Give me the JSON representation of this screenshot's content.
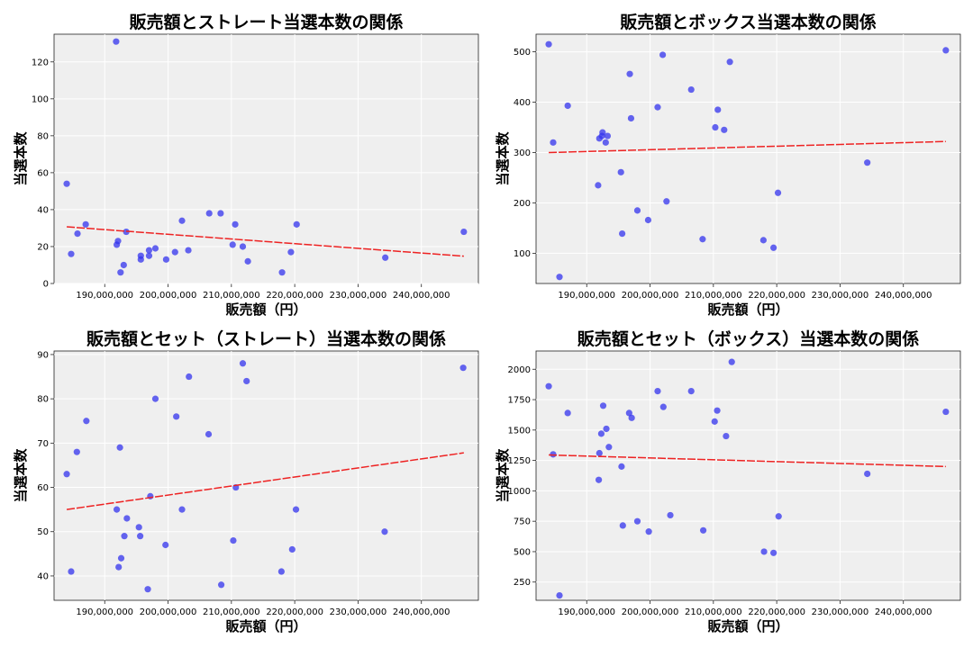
{
  "colors": {
    "plot_bg": "#efefef",
    "grid": "#ffffff",
    "point": "#3333ee",
    "trend": "#ee2222"
  },
  "charts": [
    {
      "chart_data": {
        "type": "scatter",
        "title": "販売額とストレート当選本数の関係",
        "xlabel": "販売額（円）",
        "ylabel": "当選本数",
        "xlim": [
          182000000,
          249000000
        ],
        "ylim": [
          0,
          135
        ],
        "xticks": [
          190000000,
          200000000,
          210000000,
          220000000,
          230000000,
          240000000
        ],
        "xtick_labels": [
          "190,000,000",
          "200,000,000",
          "210,000,000",
          "220,000,000",
          "230,000,000",
          "240,000,000"
        ],
        "yticks": [
          0,
          20,
          40,
          60,
          80,
          100,
          120
        ],
        "ytick_labels": [
          "0",
          "20",
          "40",
          "60",
          "80",
          "100",
          "120"
        ],
        "grid": true,
        "points": [
          [
            184000000,
            54
          ],
          [
            184700000,
            16
          ],
          [
            185700000,
            27
          ],
          [
            187000000,
            32
          ],
          [
            191800000,
            131
          ],
          [
            191900000,
            21
          ],
          [
            192100000,
            23
          ],
          [
            192500000,
            6
          ],
          [
            193000000,
            10
          ],
          [
            193400000,
            28
          ],
          [
            195700000,
            15
          ],
          [
            195700000,
            13
          ],
          [
            197000000,
            18
          ],
          [
            197000000,
            15
          ],
          [
            198000000,
            19
          ],
          [
            199700000,
            13
          ],
          [
            201100000,
            17
          ],
          [
            202200000,
            34
          ],
          [
            203200000,
            18
          ],
          [
            206500000,
            38
          ],
          [
            208300000,
            38
          ],
          [
            210200000,
            21
          ],
          [
            210600000,
            32
          ],
          [
            211800000,
            20
          ],
          [
            212600000,
            12
          ],
          [
            218000000,
            6
          ],
          [
            219400000,
            17
          ],
          [
            220300000,
            32
          ],
          [
            234300000,
            14
          ],
          [
            246700000,
            28
          ]
        ],
        "trend": {
          "x": [
            184000000,
            246700000
          ],
          "y": [
            30.7,
            14.8
          ]
        }
      }
    },
    {
      "chart_data": {
        "type": "scatter",
        "title": "販売額とボックス当選本数の関係",
        "xlabel": "販売額（円）",
        "ylabel": "当選本数",
        "xlim": [
          182000000,
          249000000
        ],
        "ylim": [
          40,
          535
        ],
        "xticks": [
          190000000,
          200000000,
          210000000,
          220000000,
          230000000,
          240000000
        ],
        "xtick_labels": [
          "190,000,000",
          "200,000,000",
          "210,000,000",
          "220,000,000",
          "230,000,000",
          "240,000,000"
        ],
        "yticks": [
          100,
          200,
          300,
          400,
          500
        ],
        "ytick_labels": [
          "100",
          "200",
          "300",
          "400",
          "500"
        ],
        "grid": true,
        "points": [
          [
            184000000,
            515
          ],
          [
            184700000,
            320
          ],
          [
            185700000,
            53
          ],
          [
            187000000,
            393
          ],
          [
            191800000,
            235
          ],
          [
            192000000,
            328
          ],
          [
            192400000,
            333
          ],
          [
            192500000,
            340
          ],
          [
            193000000,
            320
          ],
          [
            193300000,
            333
          ],
          [
            195400000,
            261
          ],
          [
            195600000,
            139
          ],
          [
            196800000,
            456
          ],
          [
            197000000,
            368
          ],
          [
            198000000,
            185
          ],
          [
            199700000,
            166
          ],
          [
            201200000,
            390
          ],
          [
            202000000,
            494
          ],
          [
            202600000,
            203
          ],
          [
            206500000,
            425
          ],
          [
            208300000,
            128
          ],
          [
            210300000,
            350
          ],
          [
            210700000,
            385
          ],
          [
            211700000,
            345
          ],
          [
            212600000,
            480
          ],
          [
            217900000,
            126
          ],
          [
            219500000,
            111
          ],
          [
            220200000,
            220
          ],
          [
            234300000,
            280
          ],
          [
            246700000,
            503
          ]
        ],
        "trend": {
          "x": [
            184000000,
            246700000
          ],
          "y": [
            300,
            322
          ]
        }
      }
    },
    {
      "chart_data": {
        "type": "scatter",
        "title": "販売額とセット（ストレート）当選本数の関係",
        "xlabel": "販売額（円）",
        "ylabel": "当選本数",
        "xlim": [
          182000000,
          249000000
        ],
        "ylim": [
          34.5,
          90.8
        ],
        "xticks": [
          190000000,
          200000000,
          210000000,
          220000000,
          230000000,
          240000000
        ],
        "xtick_labels": [
          "190,000,000",
          "200,000,000",
          "210,000,000",
          "220,000,000",
          "230,000,000",
          "240,000,000"
        ],
        "yticks": [
          40,
          50,
          60,
          70,
          80,
          90
        ],
        "ytick_labels": [
          "40",
          "50",
          "60",
          "70",
          "80",
          "90"
        ],
        "grid": true,
        "points": [
          [
            184000000,
            63
          ],
          [
            184700000,
            41
          ],
          [
            185600000,
            68
          ],
          [
            187100000,
            75
          ],
          [
            191900000,
            55
          ],
          [
            192200000,
            42
          ],
          [
            192400000,
            69
          ],
          [
            192600000,
            44
          ],
          [
            193100000,
            49
          ],
          [
            193500000,
            53
          ],
          [
            195400000,
            51
          ],
          [
            195600000,
            49
          ],
          [
            196800000,
            37
          ],
          [
            197200000,
            58
          ],
          [
            198000000,
            80
          ],
          [
            199600000,
            47
          ],
          [
            201300000,
            76
          ],
          [
            202200000,
            55
          ],
          [
            203300000,
            85
          ],
          [
            206400000,
            72
          ],
          [
            208400000,
            38
          ],
          [
            210300000,
            48
          ],
          [
            210700000,
            60
          ],
          [
            211800000,
            88
          ],
          [
            212400000,
            84
          ],
          [
            217900000,
            41
          ],
          [
            219600000,
            46
          ],
          [
            220200000,
            55
          ],
          [
            234200000,
            50
          ],
          [
            246600000,
            87
          ]
        ],
        "trend": {
          "x": [
            184000000,
            246700000
          ],
          "y": [
            55,
            67.8
          ]
        }
      }
    },
    {
      "chart_data": {
        "type": "scatter",
        "title": "販売額とセット（ボックス）当選本数の関係",
        "xlabel": "販売額（円）",
        "ylabel": "当選本数",
        "xlim": [
          182000000,
          249000000
        ],
        "ylim": [
          100,
          2150
        ],
        "xticks": [
          190000000,
          200000000,
          210000000,
          220000000,
          230000000,
          240000000
        ],
        "xtick_labels": [
          "190,000,000",
          "200,000,000",
          "210,000,000",
          "220,000,000",
          "230,000,000",
          "240,000,000"
        ],
        "yticks": [
          250,
          500,
          750,
          1000,
          1250,
          1500,
          1750,
          2000
        ],
        "ytick_labels": [
          "250",
          "500",
          "750",
          "1000",
          "1250",
          "1500",
          "1750",
          "2000"
        ],
        "grid": true,
        "points": [
          [
            184000000,
            1860
          ],
          [
            184700000,
            1300
          ],
          [
            185700000,
            140
          ],
          [
            187000000,
            1640
          ],
          [
            191900000,
            1090
          ],
          [
            192000000,
            1310
          ],
          [
            192300000,
            1470
          ],
          [
            192600000,
            1700
          ],
          [
            193100000,
            1510
          ],
          [
            193500000,
            1360
          ],
          [
            195500000,
            1200
          ],
          [
            195700000,
            715
          ],
          [
            196700000,
            1640
          ],
          [
            197100000,
            1600
          ],
          [
            198000000,
            750
          ],
          [
            199800000,
            665
          ],
          [
            201200000,
            1820
          ],
          [
            202100000,
            1690
          ],
          [
            203200000,
            800
          ],
          [
            206500000,
            1820
          ],
          [
            208400000,
            675
          ],
          [
            210200000,
            1570
          ],
          [
            210600000,
            1660
          ],
          [
            212000000,
            1450
          ],
          [
            212900000,
            2060
          ],
          [
            218000000,
            500
          ],
          [
            219500000,
            490
          ],
          [
            220300000,
            790
          ],
          [
            234300000,
            1140
          ],
          [
            246700000,
            1650
          ]
        ],
        "trend": {
          "x": [
            184000000,
            246700000
          ],
          "y": [
            1295,
            1200
          ]
        }
      }
    }
  ]
}
